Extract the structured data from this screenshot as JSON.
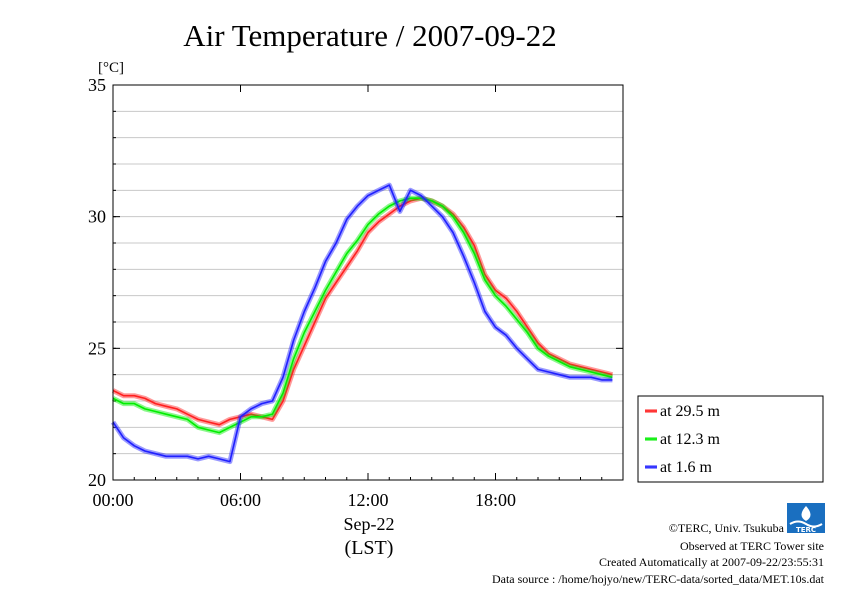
{
  "chart_data": {
    "type": "line",
    "title": "Air Temperature / 2007-09-22",
    "ylabel": "[°C]",
    "ylim": [
      20,
      35
    ],
    "yticks": [
      "20",
      "25",
      "30",
      "35"
    ],
    "xlim": [
      0,
      24
    ],
    "xticks": [
      {
        "value": 0,
        "label": "00:00"
      },
      {
        "value": 6,
        "label": "06:00"
      },
      {
        "value": 12,
        "label": "12:00"
      },
      {
        "value": 18,
        "label": "18:00"
      }
    ],
    "xdate": "Sep-22",
    "xunit": "(LST)",
    "grid": true,
    "legend_position": "right",
    "series": [
      {
        "name": "at 29.5 m",
        "color": "#ff2020",
        "x": [
          0.0,
          0.5,
          1.0,
          1.5,
          2.0,
          2.5,
          3.0,
          3.5,
          4.0,
          4.5,
          5.0,
          5.5,
          6.0,
          6.5,
          7.0,
          7.5,
          8.0,
          8.5,
          9.0,
          9.5,
          10.0,
          10.5,
          11.0,
          11.5,
          12.0,
          12.5,
          13.0,
          13.5,
          14.0,
          14.5,
          15.0,
          15.5,
          16.0,
          16.5,
          17.0,
          17.5,
          18.0,
          18.5,
          19.0,
          19.5,
          20.0,
          20.5,
          21.0,
          21.5,
          22.0,
          22.5,
          23.0,
          23.5
        ],
        "y": [
          23.4,
          23.2,
          23.2,
          23.1,
          22.9,
          22.8,
          22.7,
          22.5,
          22.3,
          22.2,
          22.1,
          22.3,
          22.4,
          22.5,
          22.4,
          22.3,
          23.0,
          24.2,
          25.1,
          26.0,
          26.9,
          27.5,
          28.1,
          28.7,
          29.4,
          29.8,
          30.1,
          30.4,
          30.6,
          30.7,
          30.6,
          30.4,
          30.1,
          29.6,
          28.9,
          27.8,
          27.2,
          26.9,
          26.4,
          25.8,
          25.2,
          24.8,
          24.6,
          24.4,
          24.3,
          24.2,
          24.1,
          24.0
        ]
      },
      {
        "name": "at 12.3 m",
        "color": "#00ee00",
        "x": [
          0.0,
          0.5,
          1.0,
          1.5,
          2.0,
          2.5,
          3.0,
          3.5,
          4.0,
          4.5,
          5.0,
          5.5,
          6.0,
          6.5,
          7.0,
          7.5,
          8.0,
          8.5,
          9.0,
          9.5,
          10.0,
          10.5,
          11.0,
          11.5,
          12.0,
          12.5,
          13.0,
          13.5,
          14.0,
          14.5,
          15.0,
          15.5,
          16.0,
          16.5,
          17.0,
          17.5,
          18.0,
          18.5,
          19.0,
          19.5,
          20.0,
          20.5,
          21.0,
          21.5,
          22.0,
          22.5,
          23.0,
          23.5
        ],
        "y": [
          23.1,
          22.9,
          22.9,
          22.7,
          22.6,
          22.5,
          22.4,
          22.3,
          22.0,
          21.9,
          21.8,
          22.0,
          22.2,
          22.4,
          22.4,
          22.5,
          23.3,
          24.6,
          25.6,
          26.4,
          27.2,
          27.9,
          28.6,
          29.1,
          29.7,
          30.1,
          30.4,
          30.6,
          30.7,
          30.7,
          30.6,
          30.4,
          30.0,
          29.4,
          28.6,
          27.6,
          27.0,
          26.6,
          26.1,
          25.6,
          25.0,
          24.7,
          24.5,
          24.3,
          24.2,
          24.1,
          24.0,
          23.9
        ]
      },
      {
        "name": "at 1.6 m",
        "color": "#2020ff",
        "x": [
          0.0,
          0.5,
          1.0,
          1.5,
          2.0,
          2.5,
          3.0,
          3.5,
          4.0,
          4.5,
          5.0,
          5.5,
          6.0,
          6.5,
          7.0,
          7.5,
          8.0,
          8.5,
          9.0,
          9.5,
          10.0,
          10.5,
          11.0,
          11.5,
          12.0,
          12.5,
          13.0,
          13.5,
          14.0,
          14.5,
          15.0,
          15.5,
          16.0,
          16.5,
          17.0,
          17.5,
          18.0,
          18.5,
          19.0,
          19.5,
          20.0,
          20.5,
          21.0,
          21.5,
          22.0,
          22.5,
          23.0,
          23.5
        ],
        "y": [
          22.2,
          21.6,
          21.3,
          21.1,
          21.0,
          20.9,
          20.9,
          20.9,
          20.8,
          20.9,
          20.8,
          20.7,
          22.4,
          22.7,
          22.9,
          23.0,
          23.9,
          25.3,
          26.4,
          27.3,
          28.3,
          29.0,
          29.9,
          30.4,
          30.8,
          31.0,
          31.2,
          30.2,
          31.0,
          30.8,
          30.4,
          30.0,
          29.4,
          28.5,
          27.5,
          26.4,
          25.8,
          25.5,
          25.0,
          24.6,
          24.2,
          24.1,
          24.0,
          23.9,
          23.9,
          23.9,
          23.8,
          23.8
        ]
      }
    ]
  },
  "footer": {
    "copyright": "©TERC, Univ. Tsukuba",
    "observed": "Observed at TERC Tower site",
    "created": "Created Automatically at 2007-09-22/23:55:31",
    "source": "Data source : /home/hojyo/new/TERC-data/sorted_data/MET.10s.dat"
  },
  "logo": {
    "text": "TERC",
    "color": "#1a6fc0"
  }
}
